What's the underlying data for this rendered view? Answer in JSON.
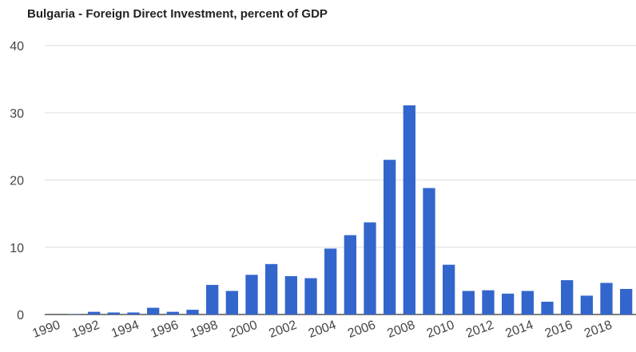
{
  "chart_data": {
    "type": "bar",
    "title": "Bulgaria - Foreign Direct Investment, percent of GDP",
    "xlabel": "",
    "ylabel": "",
    "ylim": [
      0,
      40
    ],
    "yticks": [
      "0",
      "10",
      "20",
      "30",
      "40"
    ],
    "grid": true,
    "categories": [
      "1990",
      "1991",
      "1992",
      "1993",
      "1994",
      "1995",
      "1996",
      "1997",
      "1998",
      "1999",
      "2000",
      "2001",
      "2002",
      "2003",
      "2004",
      "2005",
      "2006",
      "2007",
      "2008",
      "2009",
      "2010",
      "2011",
      "2012",
      "2013",
      "2014",
      "2015",
      "2016",
      "2017",
      "2018",
      "2019"
    ],
    "x_tick_labels": [
      "1990",
      "1992",
      "1994",
      "1996",
      "1998",
      "2000",
      "2002",
      "2004",
      "2006",
      "2008",
      "2010",
      "2012",
      "2014",
      "2016",
      "2018"
    ],
    "values": [
      0.0,
      0.05,
      0.4,
      0.3,
      0.3,
      1.0,
      0.4,
      0.7,
      4.4,
      3.5,
      5.9,
      7.5,
      5.7,
      5.4,
      9.8,
      11.8,
      13.7,
      23.0,
      31.1,
      18.8,
      7.4,
      3.5,
      3.6,
      3.1,
      3.5,
      1.9,
      5.1,
      2.8,
      4.7,
      3.8
    ],
    "bar_color": "#3366cc"
  }
}
